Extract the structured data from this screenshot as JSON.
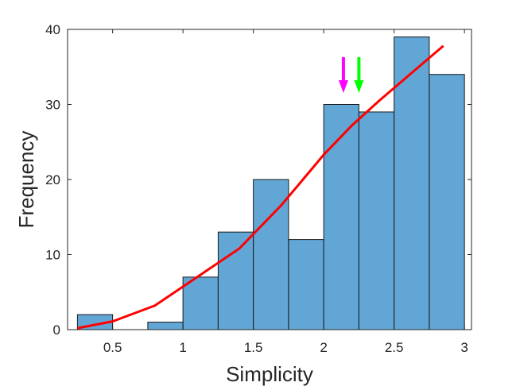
{
  "chart_data": {
    "type": "bar",
    "xlabel": "Simplicity",
    "ylabel": "Frequency",
    "xlim": [
      0.18,
      3.05
    ],
    "ylim": [
      0,
      40
    ],
    "xticks": [
      0.5,
      1,
      1.5,
      2,
      2.5,
      3
    ],
    "yticks": [
      0,
      10,
      20,
      30,
      40
    ],
    "xtick_labels": [
      "0.5",
      "1",
      "1.5",
      "2",
      "2.5",
      "3"
    ],
    "ytick_labels": [
      "0",
      "10",
      "20",
      "30",
      "40"
    ],
    "bin_edges": [
      0.25,
      0.5,
      0.75,
      1.0,
      1.25,
      1.5,
      1.75,
      2.0,
      2.25,
      2.5,
      2.75,
      3.0
    ],
    "counts": [
      2,
      0,
      1,
      7,
      13,
      20,
      12,
      30,
      29,
      39,
      34
    ],
    "bar_color": "#62a6d6",
    "bar_edge_color": "#1a1a1a",
    "fit_line": {
      "color": "#ff0000",
      "x": [
        0.25,
        0.5,
        0.8,
        1.1,
        1.4,
        1.7,
        2.0,
        2.2,
        2.4,
        2.65,
        2.85
      ],
      "y": [
        0.2,
        1.1,
        3.2,
        7.0,
        10.8,
        16.6,
        23.3,
        27.2,
        30.6,
        34.6,
        37.8
      ]
    },
    "arrows": [
      {
        "x": 2.14,
        "color": "#ff00ff"
      },
      {
        "x": 2.25,
        "color": "#00ff00"
      }
    ]
  }
}
